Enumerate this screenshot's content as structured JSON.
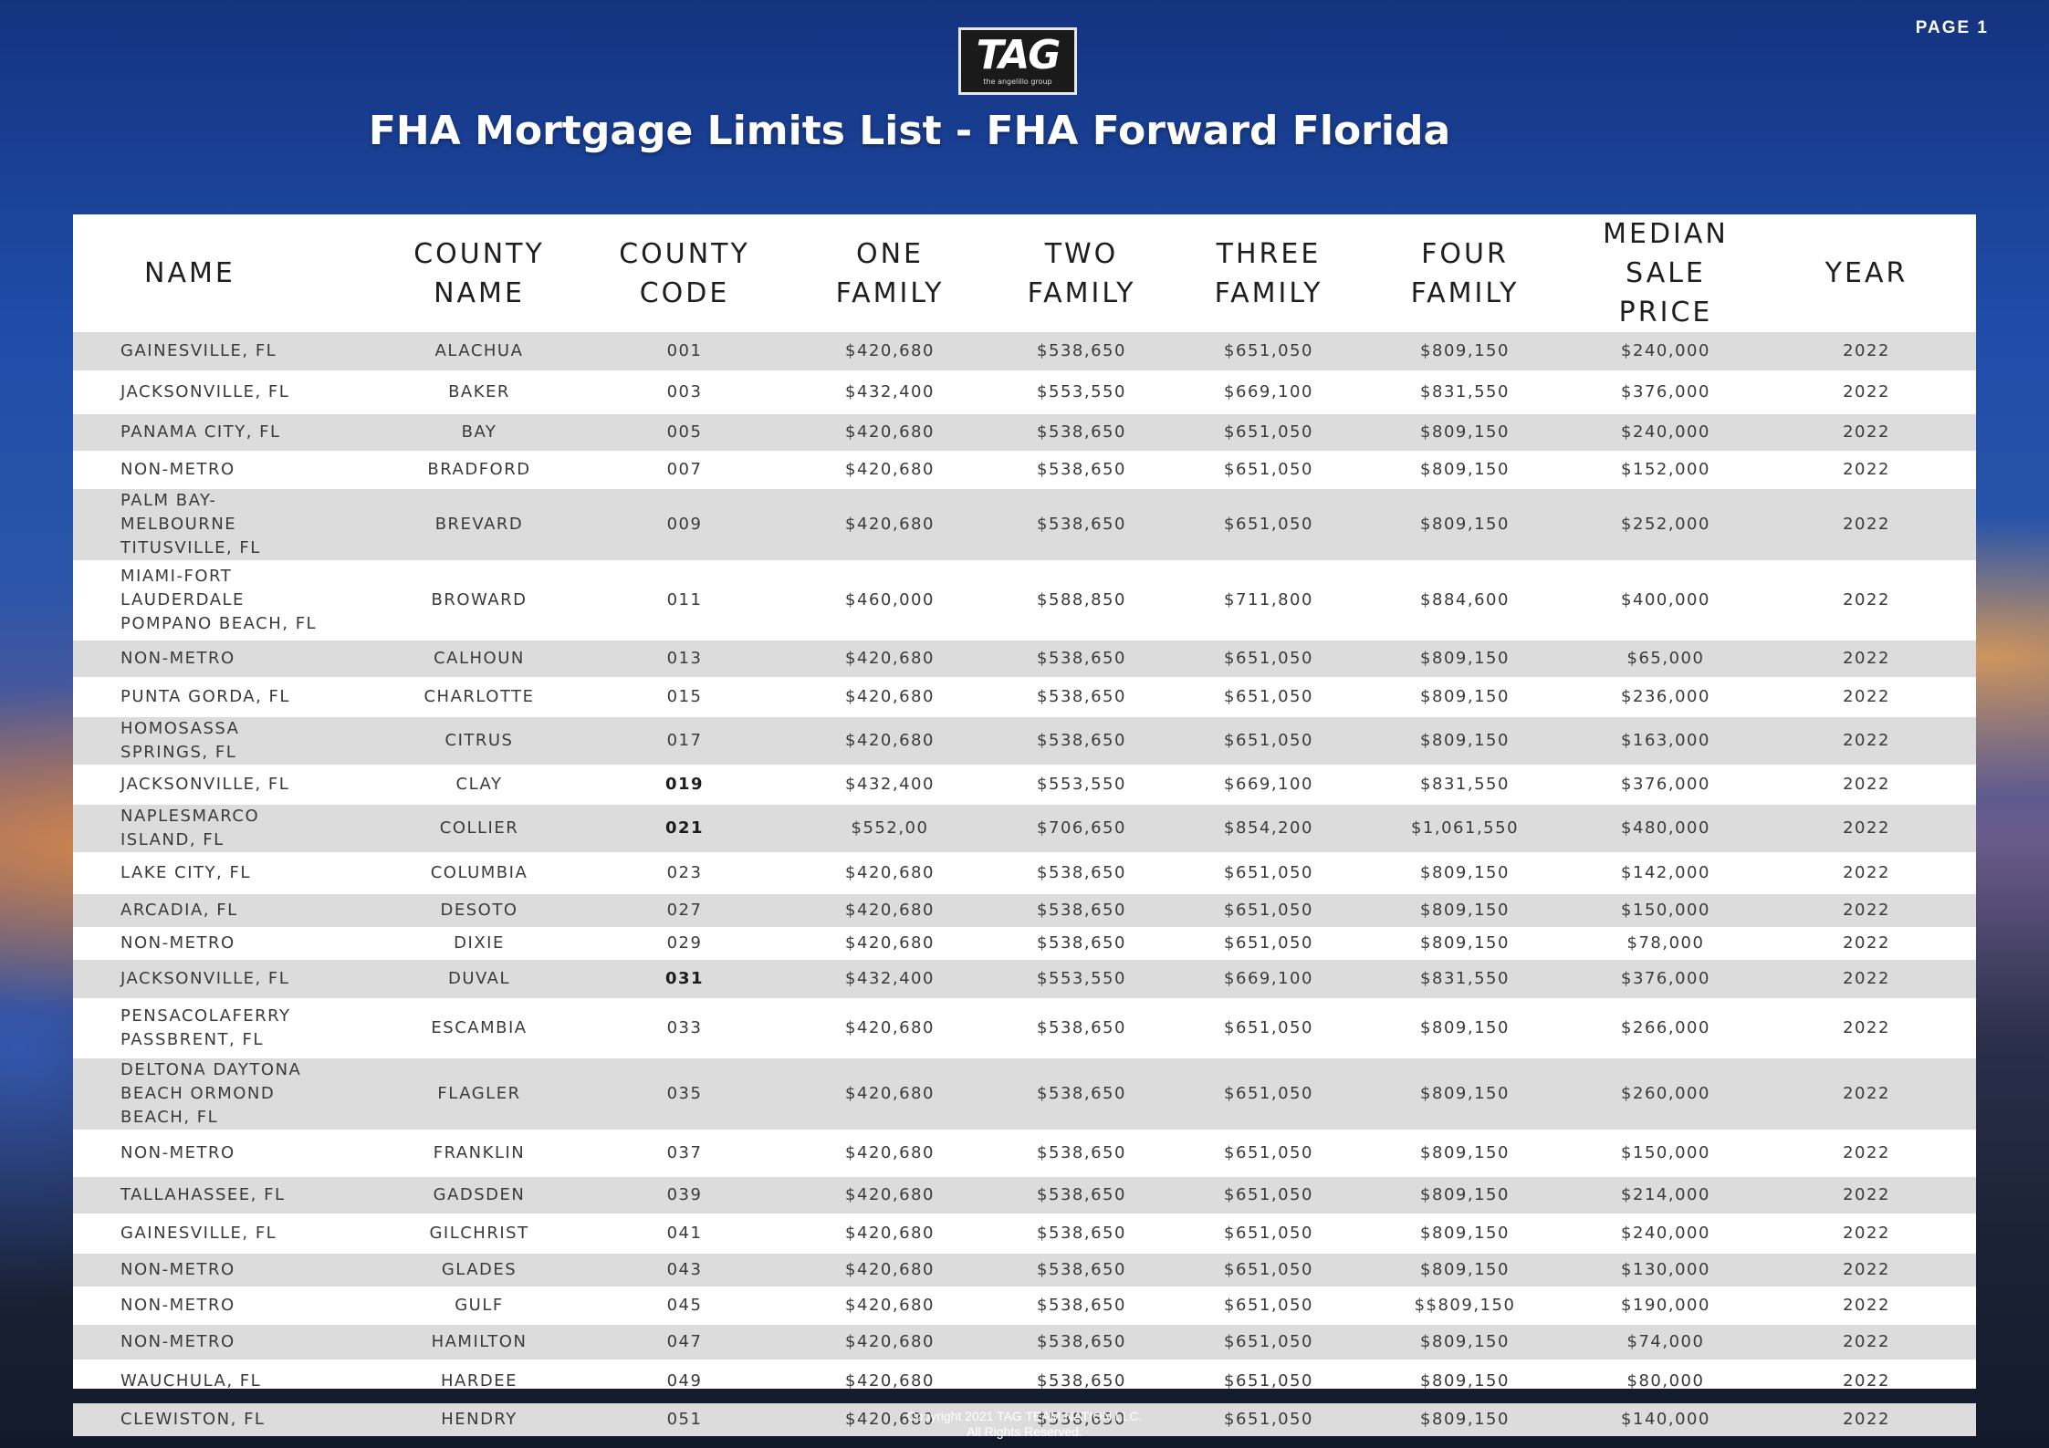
{
  "page_label": "PAGE 1",
  "logo": {
    "mark": "TAG",
    "tagline": "the angelillo group"
  },
  "title": "FHA Mortgage Limits List - FHA Forward Florida",
  "table": {
    "headers": [
      "NAME",
      "COUNTY NAME",
      "COUNTY CODE",
      "ONE FAMILY",
      "TWO FAMILY",
      "THREE FAMILY",
      "FOUR FAMILY",
      "MEDIAN SALE PRICE",
      "YEAR"
    ],
    "rows": [
      {
        "name": "GAINESVILLE, FL",
        "county": "ALACHUA",
        "code": "001",
        "code_bold": false,
        "one": "$420,680",
        "two": "$538,650",
        "three": "$651,050",
        "four": "$809,150",
        "median": "$240,000",
        "year": "2022"
      },
      {
        "name": "JACKSONVILLE, FL",
        "county": "BAKER",
        "code": "003",
        "code_bold": false,
        "one": "$432,400",
        "two": "$553,550",
        "three": "$669,100",
        "four": "$831,550",
        "median": "$376,000",
        "year": "2022"
      },
      {
        "name": "PANAMA CITY, FL",
        "county": "BAY",
        "code": "005",
        "code_bold": false,
        "one": "$420,680",
        "two": "$538,650",
        "three": "$651,050",
        "four": "$809,150",
        "median": "$240,000",
        "year": "2022"
      },
      {
        "name": "NON-METRO",
        "county": "BRADFORD",
        "code": "007",
        "code_bold": false,
        "one": "$420,680",
        "two": "$538,650",
        "three": "$651,050",
        "four": "$809,150",
        "median": "$152,000",
        "year": "2022"
      },
      {
        "name": "PALM BAY- MELBOURNE TITUSVILLE, FL",
        "county": "BREVARD",
        "code": "009",
        "code_bold": false,
        "one": "$420,680",
        "two": "$538,650",
        "three": "$651,050",
        "four": "$809,150",
        "median": "$252,000",
        "year": "2022"
      },
      {
        "name": "MIAMI-FORT LAUDERDALE POMPANO BEACH, FL",
        "county": "BROWARD",
        "code": "011",
        "code_bold": false,
        "one": "$460,000",
        "two": "$588,850",
        "three": "$711,800",
        "four": "$884,600",
        "median": "$400,000",
        "year": "2022"
      },
      {
        "name": "NON-METRO",
        "county": "CALHOUN",
        "code": "013",
        "code_bold": false,
        "one": "$420,680",
        "two": "$538,650",
        "three": "$651,050",
        "four": "$809,150",
        "median": "$65,000",
        "year": "2022"
      },
      {
        "name": "PUNTA GORDA, FL",
        "county": "CHARLOTTE",
        "code": "015",
        "code_bold": false,
        "one": "$420,680",
        "two": "$538,650",
        "three": "$651,050",
        "four": "$809,150",
        "median": "$236,000",
        "year": "2022"
      },
      {
        "name": "HOMOSASSA SPRINGS, FL",
        "county": "CITRUS",
        "code": "017",
        "code_bold": false,
        "one": "$420,680",
        "two": "$538,650",
        "three": "$651,050",
        "four": "$809,150",
        "median": "$163,000",
        "year": "2022"
      },
      {
        "name": "JACKSONVILLE, FL",
        "county": "CLAY",
        "code": "019",
        "code_bold": true,
        "one": "$432,400",
        "two": "$553,550",
        "three": "$669,100",
        "four": "$831,550",
        "median": "$376,000",
        "year": "2022"
      },
      {
        "name": "NAPLESMARCO ISLAND, FL",
        "county": "COLLIER",
        "code": "021",
        "code_bold": true,
        "one": "$552,00",
        "two": "$706,650",
        "three": "$854,200",
        "four": "$1,061,550",
        "median": "$480,000",
        "year": "2022"
      },
      {
        "name": "LAKE CITY, FL",
        "county": "COLUMBIA",
        "code": "023",
        "code_bold": false,
        "one": "$420,680",
        "two": "$538,650",
        "three": "$651,050",
        "four": "$809,150",
        "median": "$142,000",
        "year": "2022"
      },
      {
        "name": "ARCADIA, FL",
        "county": "DESOTO",
        "code": "027",
        "code_bold": false,
        "one": "$420,680",
        "two": "$538,650",
        "three": "$651,050",
        "four": "$809,150",
        "median": "$150,000",
        "year": "2022"
      },
      {
        "name": "NON-METRO",
        "county": "DIXIE",
        "code": "029",
        "code_bold": false,
        "one": "$420,680",
        "two": "$538,650",
        "three": "$651,050",
        "four": "$809,150",
        "median": "$78,000",
        "year": "2022"
      },
      {
        "name": "JACKSONVILLE, FL",
        "county": "DUVAL",
        "code": "031",
        "code_bold": true,
        "one": "$432,400",
        "two": "$553,550",
        "three": "$669,100",
        "four": "$831,550",
        "median": "$376,000",
        "year": "2022"
      },
      {
        "name": "PENSACOLAFERRY PASSBRENT, FL",
        "county": "ESCAMBIA",
        "code": "033",
        "code_bold": false,
        "one": "$420,680",
        "two": "$538,650",
        "three": "$651,050",
        "four": "$809,150",
        "median": "$266,000",
        "year": "2022"
      },
      {
        "name": "DELTONA DAYTONA BEACH ORMOND BEACH, FL",
        "county": "FLAGLER",
        "code": "035",
        "code_bold": false,
        "one": "$420,680",
        "two": "$538,650",
        "three": "$651,050",
        "four": "$809,150",
        "median": "$260,000",
        "year": "2022"
      },
      {
        "name": "NON-METRO",
        "county": "FRANKLIN",
        "code": "037",
        "code_bold": false,
        "one": "$420,680",
        "two": "$538,650",
        "three": "$651,050",
        "four": "$809,150",
        "median": "$150,000",
        "year": "2022"
      },
      {
        "name": "TALLAHASSEE, FL",
        "county": "GADSDEN",
        "code": "039",
        "code_bold": false,
        "one": "$420,680",
        "two": "$538,650",
        "three": "$651,050",
        "four": "$809,150",
        "median": "$214,000",
        "year": "2022"
      },
      {
        "name": "GAINESVILLE, FL",
        "county": "GILCHRIST",
        "code": "041",
        "code_bold": false,
        "one": "$420,680",
        "two": "$538,650",
        "three": "$651,050",
        "four": "$809,150",
        "median": "$240,000",
        "year": "2022"
      },
      {
        "name": "NON-METRO",
        "county": "GLADES",
        "code": "043",
        "code_bold": false,
        "one": "$420,680",
        "two": "$538,650",
        "three": "$651,050",
        "four": "$809,150",
        "median": "$130,000",
        "year": "2022"
      },
      {
        "name": "NON-METRO",
        "county": "GULF",
        "code": "045",
        "code_bold": false,
        "one": "$420,680",
        "two": "$538,650",
        "three": "$651,050",
        "four": "$$809,150",
        "median": "$190,000",
        "year": "2022"
      },
      {
        "name": "NON-METRO",
        "county": "HAMILTON",
        "code": "047",
        "code_bold": false,
        "one": "$420,680",
        "two": "$538,650",
        "three": "$651,050",
        "four": "$809,150",
        "median": "$74,000",
        "year": "2022"
      },
      {
        "name": "WAUCHULA, FL",
        "county": "HARDEE",
        "code": "049",
        "code_bold": false,
        "one": "$420,680",
        "two": "$538,650",
        "three": "$651,050",
        "four": "$809,150",
        "median": "$80,000",
        "year": "2022"
      },
      {
        "name": "CLEWISTON, FL",
        "county": "HENDRY",
        "code": "051",
        "code_bold": false,
        "one": "$420,680",
        "two": "$538,650",
        "three": "$651,050",
        "four": "$809,150",
        "median": "$140,000",
        "year": "2022"
      }
    ]
  },
  "footer": {
    "copyright_line1": "Copyright 2021 TAG TEAM NATION LLC.",
    "copyright_line2": "All Rights Reserved."
  }
}
